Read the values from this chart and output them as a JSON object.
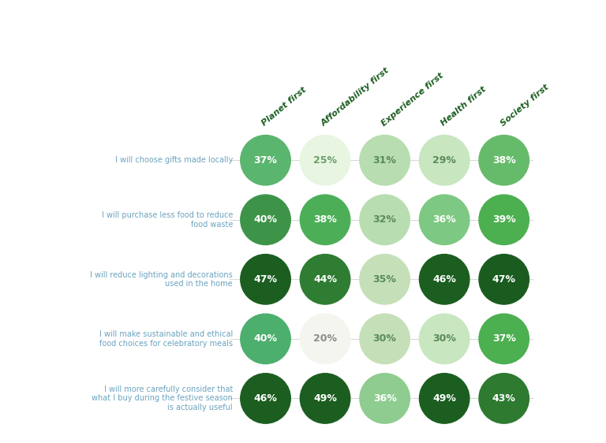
{
  "columns": [
    "Planet first",
    "Affordability first",
    "Experience first",
    "Health first",
    "Society first"
  ],
  "rows": [
    "I will choose gifts made locally",
    "I will purchase less food to reduce\nfood waste",
    "I will reduce lighting and decorations\nused in the home",
    "I will make sustainable and ethical\nfood choices for celebratory meals",
    "I will more carefully consider that\nwhat I buy during the festive season\nis actually useful"
  ],
  "values": [
    [
      37,
      25,
      31,
      29,
      38
    ],
    [
      40,
      38,
      32,
      36,
      39
    ],
    [
      47,
      44,
      35,
      46,
      47
    ],
    [
      40,
      20,
      30,
      30,
      37
    ],
    [
      46,
      49,
      36,
      49,
      43
    ]
  ],
  "colors": [
    [
      "#5ab56e",
      "#e8f5e1",
      "#b8ddb0",
      "#c8e6c0",
      "#66bb6a"
    ],
    [
      "#3d9448",
      "#4caf58",
      "#b8ddb0",
      "#7dc882",
      "#4caf50"
    ],
    [
      "#1b5e20",
      "#2e7d32",
      "#c5e0b8",
      "#1b5e20",
      "#1a5c20"
    ],
    [
      "#4caf6e",
      "#f5f5f0",
      "#c5e0b8",
      "#c8e6c0",
      "#4caf50"
    ],
    [
      "#1b5e20",
      "#1b5e20",
      "#8fcc8f",
      "#1b5e20",
      "#2d7a30"
    ]
  ],
  "text_colors": [
    [
      "#ffffff",
      "#6b9e6b",
      "#5a8a5a",
      "#5a8a5a",
      "#ffffff"
    ],
    [
      "#ffffff",
      "#ffffff",
      "#5a8a5a",
      "#ffffff",
      "#ffffff"
    ],
    [
      "#ffffff",
      "#ffffff",
      "#5a8a5a",
      "#ffffff",
      "#ffffff"
    ],
    [
      "#ffffff",
      "#8a8a8a",
      "#5a8a5a",
      "#5a8a5a",
      "#ffffff"
    ],
    [
      "#ffffff",
      "#ffffff",
      "#ffffff",
      "#ffffff",
      "#ffffff"
    ]
  ],
  "background_color": "#ffffff",
  "row_label_color": "#6ba3be",
  "col_label_color": "#1b5e20",
  "gridline_color": "#d0d0d0"
}
